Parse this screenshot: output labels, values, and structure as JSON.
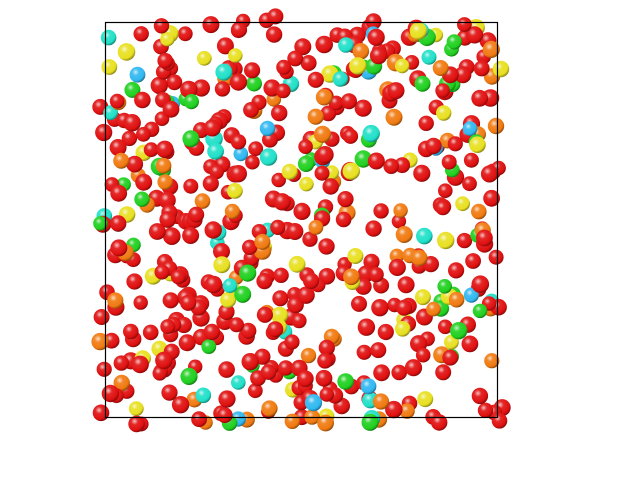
{
  "scene": {
    "description_free": true,
    "palette": {
      "background": "#ffffff",
      "frame": "#000000",
      "red": "#e01010",
      "orange": "#f07a10",
      "yellow": "#e8e020",
      "green": "#20d020",
      "cyan": "#20e0c8",
      "lightblue": "#30b8f0"
    },
    "color_mix": {
      "red": 0.66,
      "orange": 0.1,
      "yellow": 0.09,
      "green": 0.08,
      "cyan": 0.05,
      "lightblue": 0.02
    },
    "particle_count": 560
  }
}
